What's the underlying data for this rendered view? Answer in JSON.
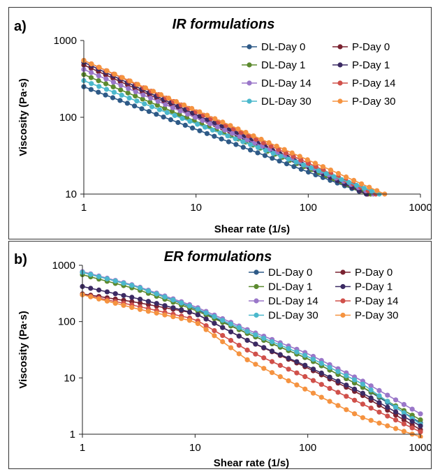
{
  "colors": {
    "DL-Day 0": "#2e5a87",
    "P-Day 0": "#7a2230",
    "DL-Day 1": "#5c8a2f",
    "P-Day 1": "#3b2a63",
    "DL-Day 14": "#9a77c9",
    "P-Day 14": "#d0504a",
    "DL-Day 30": "#4bb8cc",
    "P-Day 30": "#f59340"
  },
  "chart_data": [
    {
      "type": "line",
      "panel_label": "a)",
      "title": "IR formulations",
      "xlabel": "Shear rate (1/s)",
      "ylabel": "Viscosity (Pa·s)",
      "xscale": "log",
      "yscale": "log",
      "xlim": [
        1,
        1000
      ],
      "ylim": [
        10,
        1000
      ],
      "xticks": [
        "1",
        "10",
        "100",
        "1000"
      ],
      "yticks": [
        "10",
        "100",
        "1000"
      ],
      "grid": false,
      "legend_position": "top-right",
      "legend_columns": 2,
      "legend_order": [
        "DL-Day 0",
        "P-Day 0",
        "DL-Day 1",
        "P-Day 1",
        "DL-Day 14",
        "P-Day 14",
        "DL-Day 30",
        "P-Day 30"
      ],
      "series": [
        {
          "name": "DL-Day 0",
          "x_range": [
            1,
            330
          ],
          "y_at_x_start": 250,
          "y_at_x_end": 10,
          "points": 40
        },
        {
          "name": "P-Day 0",
          "x_range": [
            1,
            340
          ],
          "y_at_x_start": 480,
          "y_at_x_end": 10,
          "points": 40
        },
        {
          "name": "DL-Day 1",
          "x_range": [
            1,
            360
          ],
          "y_at_x_start": 360,
          "y_at_x_end": 10,
          "points": 40
        },
        {
          "name": "P-Day 1",
          "x_range": [
            1,
            330
          ],
          "y_at_x_start": 520,
          "y_at_x_end": 10,
          "points": 40
        },
        {
          "name": "DL-Day 14",
          "x_range": [
            1,
            380
          ],
          "y_at_x_start": 420,
          "y_at_x_end": 10,
          "points": 40
        },
        {
          "name": "P-Day 14",
          "x_range": [
            1,
            400
          ],
          "y_at_x_start": 550,
          "y_at_x_end": 10,
          "points": 40
        },
        {
          "name": "DL-Day 30",
          "x_range": [
            1,
            430
          ],
          "y_at_x_start": 300,
          "y_at_x_end": 10,
          "points": 40
        },
        {
          "name": "P-Day 30",
          "x_range": [
            1,
            480
          ],
          "y_at_x_start": 550,
          "y_at_x_end": 10,
          "points": 40
        }
      ]
    },
    {
      "type": "line",
      "panel_label": "b)",
      "title": "ER formulations",
      "xlabel": "Shear rate (1/s)",
      "ylabel": "Viscosity (Pa·s)",
      "xscale": "log",
      "yscale": "log",
      "xlim": [
        1,
        1000
      ],
      "ylim": [
        1,
        1000
      ],
      "xticks": [
        "1",
        "10",
        "100",
        "1000"
      ],
      "yticks": [
        "1",
        "10",
        "100",
        "1000"
      ],
      "grid": false,
      "legend_position": "top-right",
      "legend_columns": 2,
      "legend_order": [
        "DL-Day 0",
        "P-Day 0",
        "DL-Day 1",
        "P-Day 1",
        "DL-Day 14",
        "P-Day 14",
        "DL-Day 30",
        "P-Day 30"
      ],
      "series": [
        {
          "name": "DL-Day 0",
          "x": [
            1,
            3,
            10,
            30,
            100,
            300,
            1000
          ],
          "y": [
            750,
            420,
            170,
            60,
            22,
            7,
            1.6
          ]
        },
        {
          "name": "DL-Day 1",
          "x": [
            1,
            3,
            10,
            30,
            100,
            300,
            1000
          ],
          "y": [
            680,
            380,
            160,
            60,
            22,
            7,
            1.8
          ]
        },
        {
          "name": "DL-Day 14",
          "x": [
            1,
            3,
            10,
            30,
            100,
            300,
            1000
          ],
          "y": [
            770,
            430,
            185,
            70,
            27,
            9,
            2.3
          ]
        },
        {
          "name": "DL-Day 30",
          "x": [
            1,
            3,
            10,
            30,
            100,
            300,
            1000
          ],
          "y": [
            750,
            420,
            175,
            65,
            24,
            8,
            1.5
          ]
        },
        {
          "name": "P-Day 0",
          "x": [
            1,
            3,
            10,
            30,
            100,
            300,
            1000
          ],
          "y": [
            310,
            220,
            140,
            45,
            15,
            5,
            1.2
          ]
        },
        {
          "name": "P-Day 1",
          "x": [
            1,
            3,
            10,
            30,
            100,
            300,
            1000
          ],
          "y": [
            420,
            260,
            140,
            45,
            16,
            5.5,
            1.4
          ]
        },
        {
          "name": "P-Day 14",
          "x": [
            1,
            3,
            10,
            30,
            100,
            300,
            1000
          ],
          "y": [
            300,
            190,
            110,
            30,
            10,
            3.5,
            1.1
          ]
        },
        {
          "name": "P-Day 30",
          "x": [
            1,
            3,
            10,
            30,
            100,
            300,
            1000
          ],
          "y": [
            300,
            170,
            100,
            20,
            6,
            2,
            0.9
          ]
        }
      ]
    }
  ]
}
